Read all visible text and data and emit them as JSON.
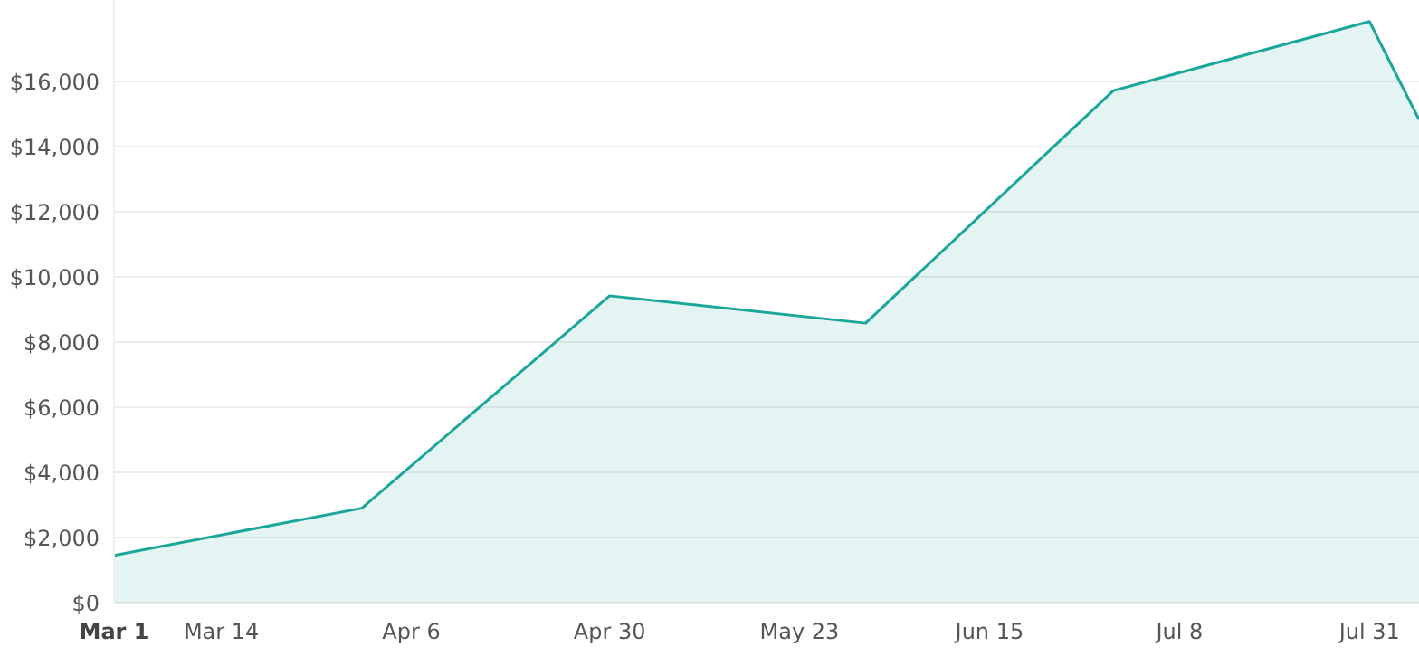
{
  "chart_data": {
    "type": "area",
    "x": [
      "--03-01",
      "--03-31",
      "--04-30",
      "--05-31",
      "--06-30",
      "--07-31",
      "--08-06"
    ],
    "series": [
      {
        "color": "#1aa79a",
        "values": [
          1450,
          2900,
          9420,
          8580,
          15720,
          17840,
          14830
        ]
      }
    ],
    "xlim": [
      "--03-01",
      "--08-06"
    ],
    "xticks": [
      {
        "value": "--03-01",
        "label": "Mar 1"
      },
      {
        "value": "--03-14",
        "label": "Mar 14"
      },
      {
        "value": "--04-06",
        "label": "Apr 6"
      },
      {
        "value": "--04-30",
        "label": "Apr 30"
      },
      {
        "value": "--05-23",
        "label": "May 23"
      },
      {
        "value": "--06-15",
        "label": "Jun 15"
      },
      {
        "value": "--07-08",
        "label": "Jul 8"
      },
      {
        "value": "--07-31",
        "label": "Jul 31"
      }
    ],
    "ylim": [
      0,
      18500
    ],
    "yticks": [
      {
        "value": 0,
        "label": "$0"
      },
      {
        "value": 2000,
        "label": "$2,000"
      },
      {
        "value": 4000,
        "label": "$4,000"
      },
      {
        "value": 6000,
        "label": "$6,000"
      },
      {
        "value": 8000,
        "label": "$8,000"
      },
      {
        "value": 10000,
        "label": "$10,000"
      },
      {
        "value": 12000,
        "label": "$12,000"
      },
      {
        "value": 14000,
        "label": "$14,000"
      },
      {
        "value": 16000,
        "label": "$16,000"
      }
    ],
    "grid": "y",
    "legend": false,
    "marker": "none"
  }
}
